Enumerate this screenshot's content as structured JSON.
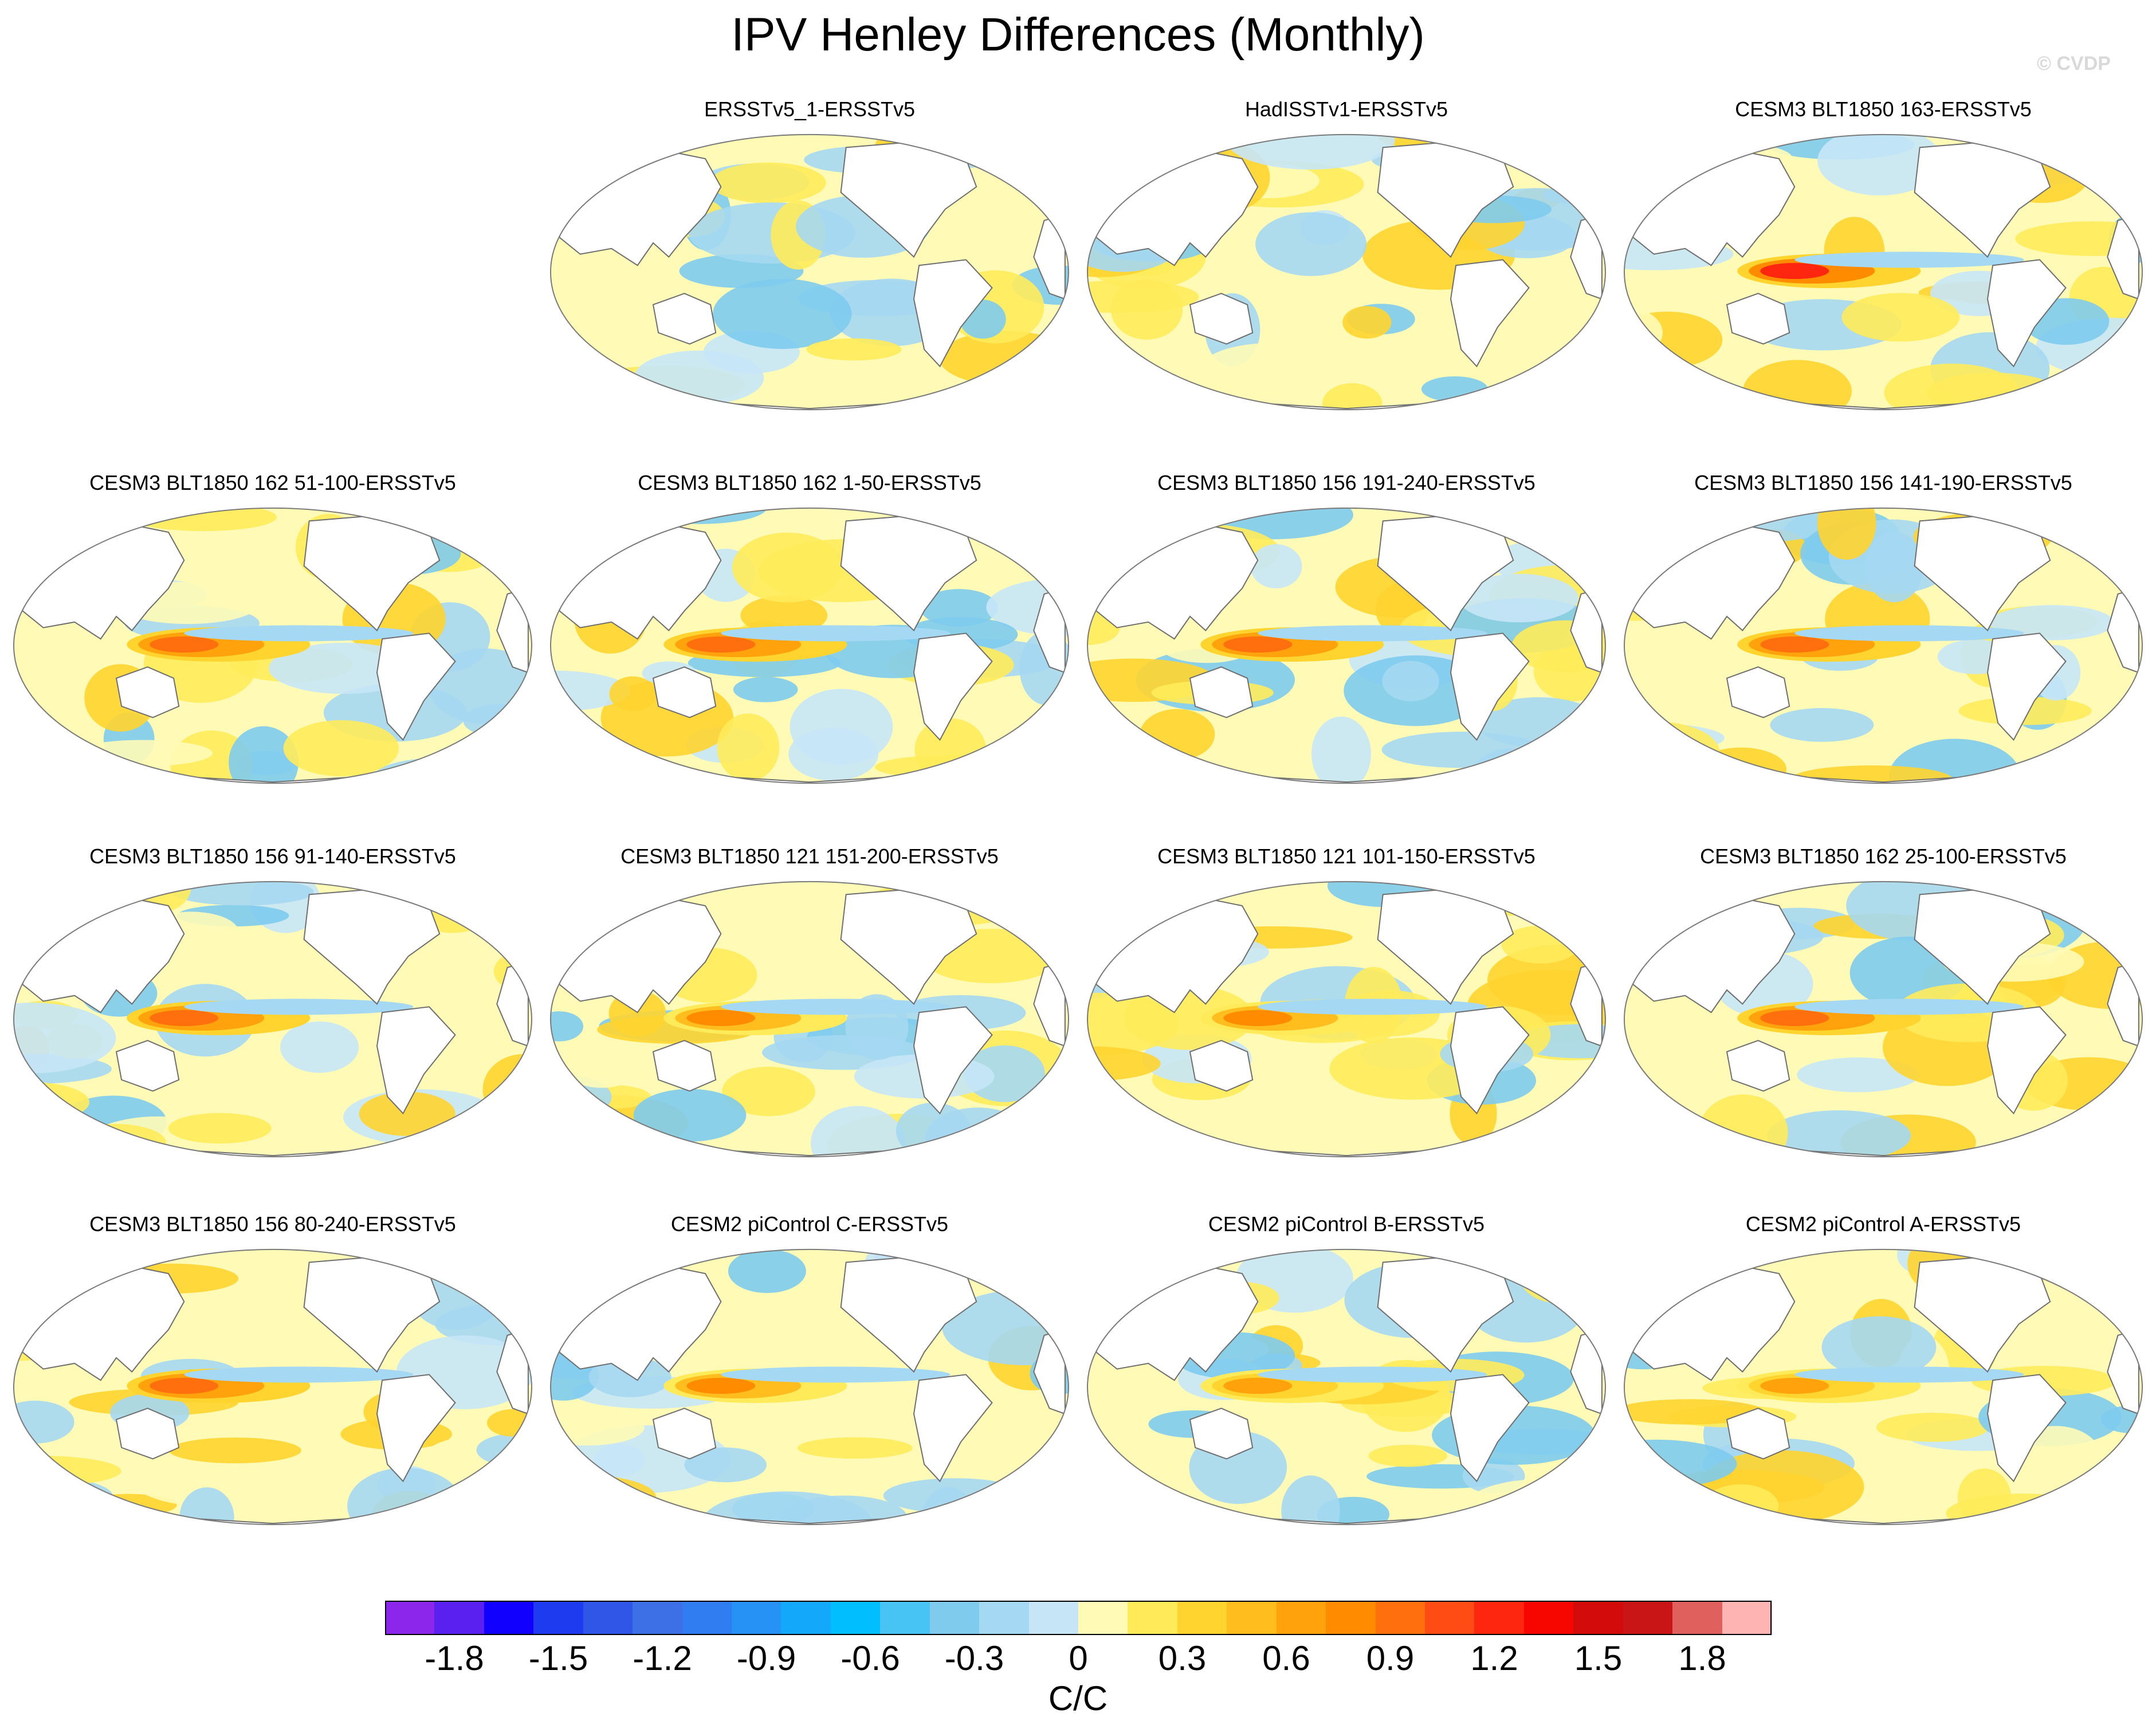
{
  "chart_data": {
    "type": "heatmap",
    "title": "IPV Henley Differences (Monthly)",
    "credit": "© CVDP",
    "projection": "Robinson (global, Pacific-centered)",
    "variable": "IPV Henley pattern difference vs ERSSTv5",
    "units": "C/C",
    "value_range": [
      -2.0,
      2.0
    ],
    "contour_levels": [
      -1.9,
      -1.8,
      -1.7,
      -1.6,
      -1.5,
      -1.4,
      -1.3,
      -1.2,
      -1.1,
      -1.0,
      -0.9,
      -0.8,
      -0.7,
      -0.6,
      -0.5,
      -0.4,
      -0.3,
      -0.2,
      -0.1,
      0,
      0.1,
      0.2,
      0.3,
      0.4,
      0.5,
      0.6,
      0.7,
      0.8,
      0.9,
      1.0,
      1.1,
      1.2,
      1.3,
      1.4,
      1.5,
      1.6,
      1.7,
      1.8,
      1.9
    ],
    "colorbar": {
      "colors": [
        "#8b26ea",
        "#5a20f0",
        "#1200ff",
        "#1e3bf0",
        "#2f56e6",
        "#3d6fe6",
        "#2f7df0",
        "#2692f5",
        "#14a8fa",
        "#00beff",
        "#47c3f4",
        "#7ecbee",
        "#a5d8f2",
        "#c6e6f7",
        "#fffbb6",
        "#ffeb5a",
        "#ffd42f",
        "#ffbe1d",
        "#ffa20c",
        "#ff8b00",
        "#ff6f0d",
        "#ff4c14",
        "#ff2610",
        "#f70600",
        "#d30b0b",
        "#c91515",
        "#e0605e",
        "#ffb4b4"
      ],
      "tick_labels": [
        "-1.8",
        "-1.5",
        "-1.2",
        "-0.9",
        "-0.6",
        "-0.3",
        "0",
        "0.3",
        "0.6",
        "0.9",
        "1.2",
        "1.5",
        "1.8"
      ],
      "label": "C/C"
    },
    "panels": [
      {
        "title": "ERSSTv5_1-ERSSTv5",
        "row": 0,
        "col": 1,
        "max_abs_diff": 0.3,
        "feature": "weak, mostly neutral"
      },
      {
        "title": "HadISSTv1-ERSSTv5",
        "row": 0,
        "col": 2,
        "max_abs_diff": 0.3,
        "feature": "weak, mostly neutral"
      },
      {
        "title": "CESM3 BLT1850 163-ERSSTv5",
        "row": 0,
        "col": 3,
        "max_abs_diff": 1.3,
        "feature": "warm tropical west Pacific"
      },
      {
        "title": "CESM3 BLT1850 162 51-100-ERSSTv5",
        "row": 1,
        "col": 0,
        "max_abs_diff": 1.1,
        "feature": "warm tropical west Pacific"
      },
      {
        "title": "CESM3 BLT1850 162 1-50-ERSSTv5",
        "row": 1,
        "col": 1,
        "max_abs_diff": 1.1,
        "feature": "warm tropical west Pacific"
      },
      {
        "title": "CESM3 BLT1850 156 191-240-ERSSTv5",
        "row": 1,
        "col": 2,
        "max_abs_diff": 1.0,
        "feature": "warm west Pacific and north Atlantic"
      },
      {
        "title": "CESM3 BLT1850 156 141-190-ERSSTv5",
        "row": 1,
        "col": 3,
        "max_abs_diff": 1.0,
        "feature": "warm tropical west Pacific"
      },
      {
        "title": "CESM3 BLT1850 156 91-140-ERSSTv5",
        "row": 2,
        "col": 0,
        "max_abs_diff": 1.0,
        "feature": "warm tropical west Pacific"
      },
      {
        "title": "CESM3 BLT1850 121 151-200-ERSSTv5",
        "row": 2,
        "col": 1,
        "max_abs_diff": 0.8,
        "feature": "warm tropical west Pacific"
      },
      {
        "title": "CESM3 BLT1850 121 101-150-ERSSTv5",
        "row": 2,
        "col": 2,
        "max_abs_diff": 0.8,
        "feature": "warm west Pacific and southeast Pacific"
      },
      {
        "title": "CESM3 BLT1850 162 25-100-ERSSTv5",
        "row": 2,
        "col": 3,
        "max_abs_diff": 1.1,
        "feature": "warm tropical west Pacific"
      },
      {
        "title": "CESM3 BLT1850 156 80-240-ERSSTv5",
        "row": 3,
        "col": 0,
        "max_abs_diff": 1.0,
        "feature": "warm tropical west Pacific"
      },
      {
        "title": "CESM2 piControl C-ERSSTv5",
        "row": 3,
        "col": 1,
        "max_abs_diff": 0.8,
        "feature": "warm tropical west Pacific"
      },
      {
        "title": "CESM2 piControl B-ERSSTv5",
        "row": 3,
        "col": 2,
        "max_abs_diff": 0.7,
        "feature": "warm tropical west Pacific"
      },
      {
        "title": "CESM2 piControl A-ERSSTv5",
        "row": 3,
        "col": 3,
        "max_abs_diff": 0.7,
        "feature": "warm tropical west Pacific"
      }
    ]
  }
}
